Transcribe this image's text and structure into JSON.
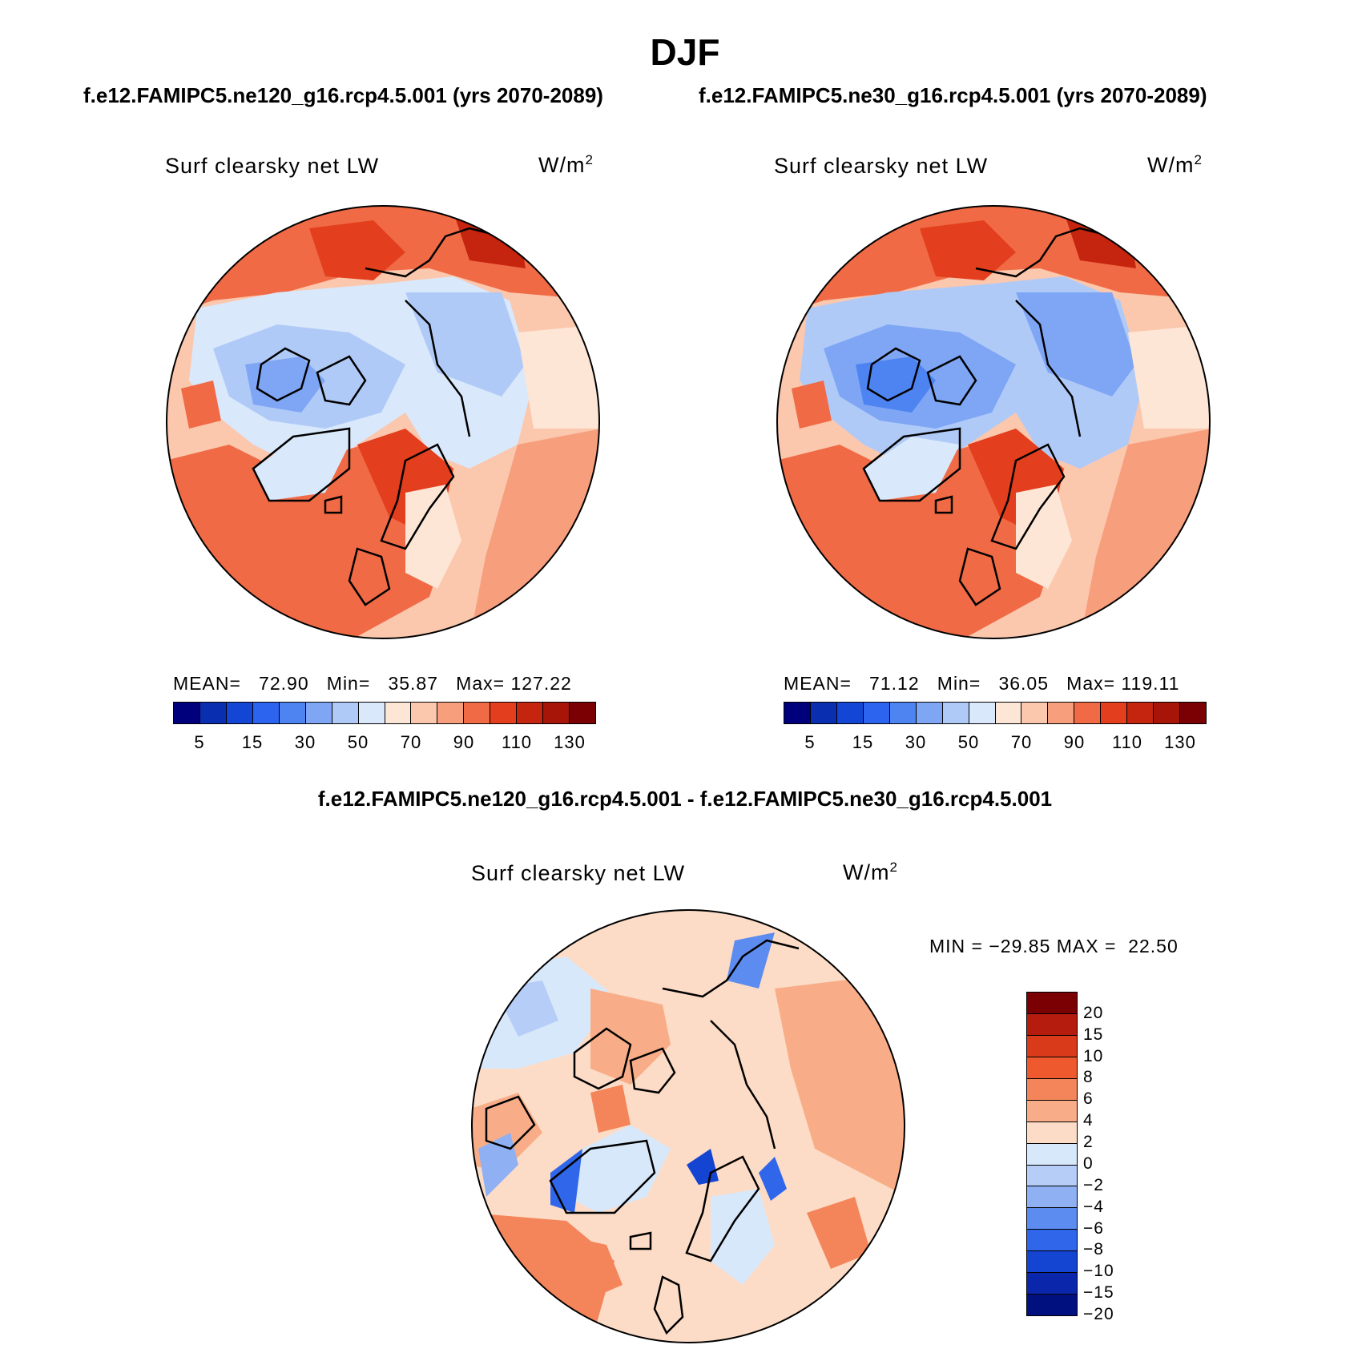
{
  "title": "DJF",
  "panels": [
    {
      "case": "f.e12.FAMIPC5.ne120_g16.rcp4.5.001 (yrs 2070-2089)",
      "variable": "Surf clearsky net LW",
      "units": "W/m",
      "units_sup": "2",
      "stats": "MEAN=   72.90   Min=   35.87   Max= 127.22"
    },
    {
      "case": "f.e12.FAMIPC5.ne30_g16.rcp4.5.001 (yrs 2070-2089)",
      "variable": "Surf clearsky net LW",
      "units": "W/m",
      "units_sup": "2",
      "stats": "MEAN=   71.12   Min=   36.05   Max= 119.11"
    }
  ],
  "difference": {
    "title": "f.e12.FAMIPC5.ne120_g16.rcp4.5.001 - f.e12.FAMIPC5.ne30_g16.rcp4.5.001",
    "variable": "Surf clearsky net LW",
    "units": "W/m",
    "units_sup": "2",
    "stats": "MIN = −29.85 MAX =  22.50"
  },
  "colorbar_abs": {
    "colors": [
      "#00007d",
      "#0a2eb0",
      "#1446d6",
      "#2c64f0",
      "#4e84f2",
      "#7ea6f5",
      "#b0caf8",
      "#d9e8fb",
      "#fde6d6",
      "#fbc7ad",
      "#f79e7c",
      "#f06a45",
      "#e33e1d",
      "#c5240e",
      "#a71509",
      "#7a0004"
    ],
    "ticks": [
      "5",
      "15",
      "30",
      "50",
      "70",
      "90",
      "110",
      "130"
    ]
  },
  "colorbar_diff": {
    "colors": [
      "#7a0004",
      "#b51c0e",
      "#d83a1a",
      "#ee5a2d",
      "#f4855a",
      "#f8ad88",
      "#fcdcc6",
      "#d8e8fb",
      "#b5cdf7",
      "#8fb1f4",
      "#5c8cf0",
      "#2f66ea",
      "#1444d2",
      "#0a27ac",
      "#00107f"
    ],
    "ticks": [
      "20",
      "15",
      "10",
      "8",
      "6",
      "4",
      "2",
      "0",
      "−2",
      "−4",
      "−6",
      "−8",
      "−10",
      "−15",
      "−20"
    ]
  }
}
